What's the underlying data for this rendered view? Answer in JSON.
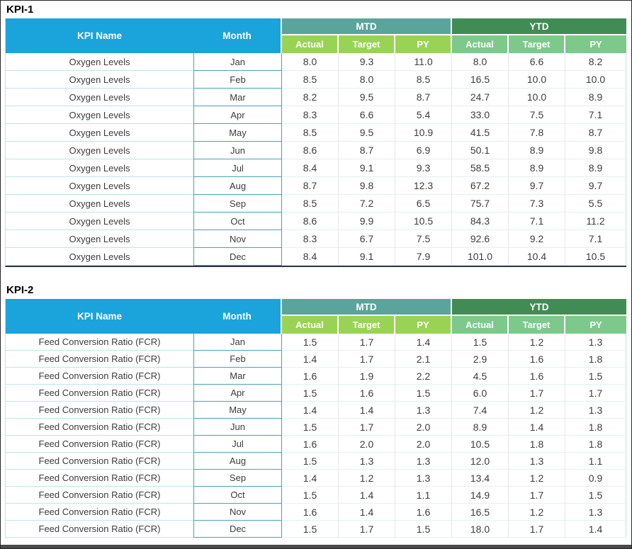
{
  "headers": {
    "kpi_name": "KPI Name",
    "month": "Month",
    "mtd": "MTD",
    "ytd": "YTD",
    "actual": "Actual",
    "target": "Target",
    "py": "PY"
  },
  "tables": [
    {
      "label": "KPI-1",
      "kpi_name": "Oxygen Levels",
      "rows": [
        [
          "Jan",
          "8.0",
          "9.3",
          "11.0",
          "8.0",
          "6.6",
          "8.2"
        ],
        [
          "Feb",
          "8.5",
          "8.0",
          "8.5",
          "16.5",
          "10.0",
          "10.0"
        ],
        [
          "Mar",
          "8.2",
          "9.5",
          "8.7",
          "24.7",
          "10.0",
          "8.9"
        ],
        [
          "Apr",
          "8.3",
          "6.6",
          "5.4",
          "33.0",
          "7.5",
          "7.1"
        ],
        [
          "May",
          "8.5",
          "9.5",
          "10.9",
          "41.5",
          "7.8",
          "8.7"
        ],
        [
          "Jun",
          "8.6",
          "8.7",
          "6.9",
          "50.1",
          "8.9",
          "9.8"
        ],
        [
          "Jul",
          "8.4",
          "9.1",
          "9.3",
          "58.5",
          "8.9",
          "8.9"
        ],
        [
          "Aug",
          "8.7",
          "9.8",
          "12.3",
          "67.2",
          "9.7",
          "9.7"
        ],
        [
          "Sep",
          "8.5",
          "7.2",
          "6.5",
          "75.7",
          "7.3",
          "5.5"
        ],
        [
          "Oct",
          "8.6",
          "9.9",
          "10.5",
          "84.3",
          "7.1",
          "11.2"
        ],
        [
          "Nov",
          "8.3",
          "6.7",
          "7.5",
          "92.6",
          "9.2",
          "7.1"
        ],
        [
          "Dec",
          "8.4",
          "9.1",
          "7.9",
          "101.0",
          "10.4",
          "10.5"
        ]
      ]
    },
    {
      "label": "KPI-2",
      "kpi_name": "Feed Conversion Ratio (FCR)",
      "rows": [
        [
          "Jan",
          "1.5",
          "1.7",
          "1.4",
          "1.5",
          "1.2",
          "1.3"
        ],
        [
          "Feb",
          "1.4",
          "1.7",
          "2.1",
          "2.9",
          "1.6",
          "1.8"
        ],
        [
          "Mar",
          "1.6",
          "1.9",
          "2.2",
          "4.5",
          "1.6",
          "1.5"
        ],
        [
          "Apr",
          "1.5",
          "1.6",
          "1.5",
          "6.0",
          "1.7",
          "1.7"
        ],
        [
          "May",
          "1.4",
          "1.4",
          "1.3",
          "7.4",
          "1.2",
          "1.3"
        ],
        [
          "Jun",
          "1.5",
          "1.7",
          "2.0",
          "8.9",
          "1.4",
          "1.8"
        ],
        [
          "Jul",
          "1.6",
          "2.0",
          "2.0",
          "10.5",
          "1.8",
          "1.8"
        ],
        [
          "Aug",
          "1.5",
          "1.3",
          "1.3",
          "12.0",
          "1.3",
          "1.1"
        ],
        [
          "Sep",
          "1.4",
          "1.2",
          "1.3",
          "13.4",
          "1.2",
          "0.9"
        ],
        [
          "Oct",
          "1.5",
          "1.4",
          "1.1",
          "14.9",
          "1.7",
          "1.5"
        ],
        [
          "Nov",
          "1.6",
          "1.4",
          "1.6",
          "16.5",
          "1.2",
          "1.3"
        ],
        [
          "Dec",
          "1.5",
          "1.7",
          "1.5",
          "18.0",
          "1.7",
          "1.4"
        ]
      ]
    }
  ],
  "colors": {
    "header_blue": "#1BA3DB",
    "mtd_group_teal": "#5AA49C",
    "ytd_group_green": "#418C55",
    "mtd_subheader_green": "#99D355",
    "ytd_subheader_green": "#7CC98B",
    "month_cell_border": "#4BA2B0",
    "light_cell_border": "#BFE0EA",
    "table_bottom_border": "#2E3640",
    "window_bottom_bar": "#4A4A4A",
    "data_text": "#3C3C3C"
  }
}
